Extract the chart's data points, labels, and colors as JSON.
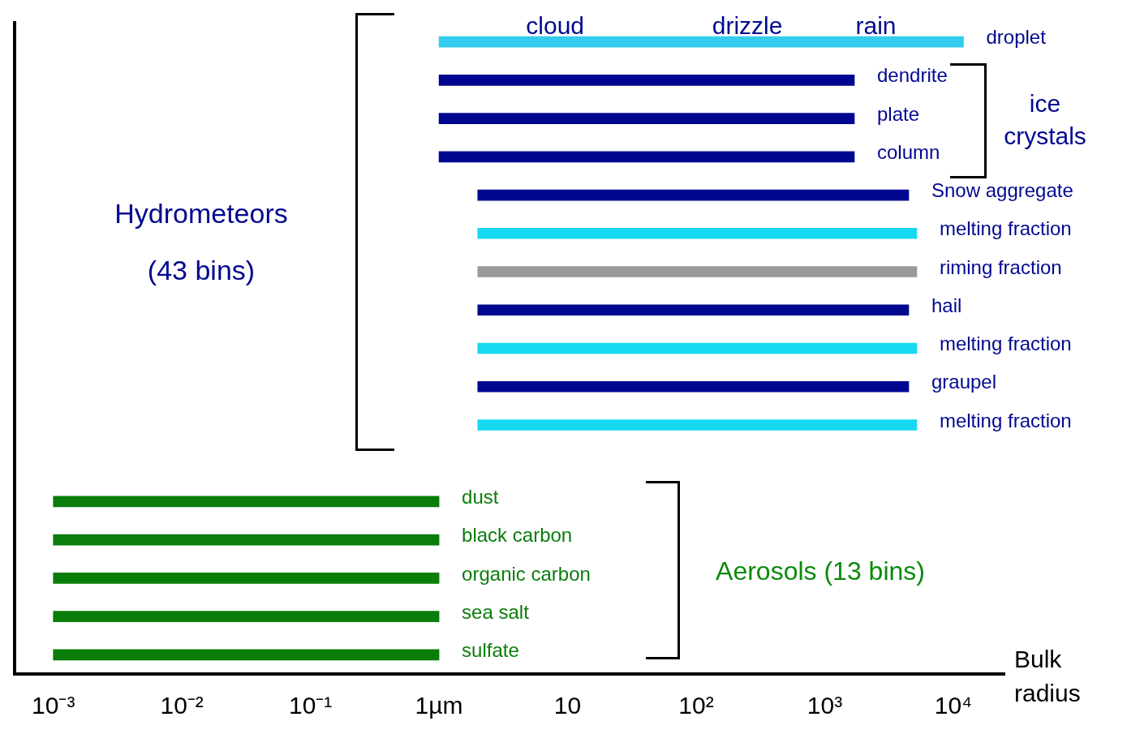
{
  "chart_data": {
    "type": "bar",
    "orientation": "horizontal",
    "log": "x",
    "xlabel": "Bulk radius",
    "categories": [
      "droplet",
      "dendrite",
      "plate",
      "column",
      "Snow aggregate",
      "melting fraction",
      "riming fraction",
      "hail",
      "melting fraction",
      "graupel",
      "melting fraction",
      null,
      "dust",
      "black carbon",
      "organic carbon",
      "sea salt",
      "sulfate"
    ],
    "base": [
      1,
      1,
      1,
      1,
      2,
      2,
      2,
      2,
      2,
      2,
      2,
      null,
      0.001,
      0.001,
      0.001,
      0.001,
      0.001
    ],
    "values": [
      11999,
      1699,
      1699,
      1699,
      4498,
      5198,
      5198,
      4498,
      5198,
      4498,
      5198,
      null,
      0.999,
      0.999,
      0.999,
      0.999,
      0.999
    ],
    "colors": [
      "#33ccee",
      "#00088f",
      "#00088f",
      "#00088f",
      "#00088f",
      "#16d8f0",
      "#9a9a9a",
      "#00088f",
      "#16d8f0",
      "#00088f",
      "#16d8f0",
      "#000000",
      "#0a7d0a",
      "#0a7d0a",
      "#0a7d0a",
      "#0a7d0a",
      "#0a7d0a"
    ],
    "xlim": [
      0.0005,
      25000
    ],
    "xticks": [
      {
        "value": 0.001,
        "label": "10⁻³"
      },
      {
        "value": 0.01,
        "label": "10⁻²"
      },
      {
        "value": 0.1,
        "label": "10⁻¹"
      },
      {
        "value": 1,
        "label": "1µm"
      },
      {
        "value": 10,
        "label": "10"
      },
      {
        "value": 100,
        "label": "10²"
      },
      {
        "value": 1000,
        "label": "10³"
      },
      {
        "value": 10000,
        "label": "10⁴"
      }
    ],
    "tick_labels": "x",
    "grid": false,
    "legend": false,
    "annotations": [
      "Hydrometeors",
      "(43 bins)",
      "ice",
      "crystals",
      "Aerosols (13 bins)",
      {
        "text": "cloud",
        "x": 8,
        "y": "droplet"
      },
      {
        "text": "drizzle",
        "x": 250,
        "y": "droplet"
      },
      {
        "text": "rain",
        "x": 2500,
        "y": "droplet"
      }
    ]
  }
}
